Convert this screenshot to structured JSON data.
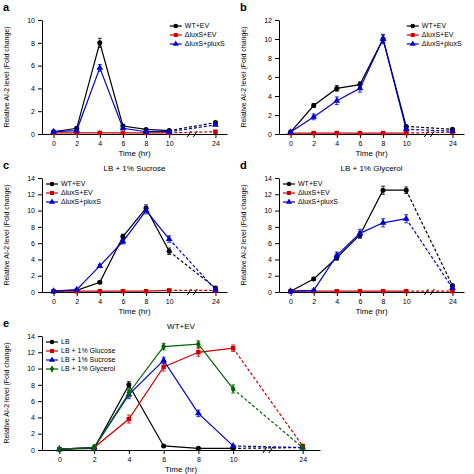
{
  "chart_data": [
    {
      "type": "line",
      "annotations": [
        "a"
      ],
      "xlabel": "Time (hr)",
      "ylabel": "Relative AI-2 level (Fold change)",
      "categories": [
        "0",
        "2",
        "4",
        "6",
        "8",
        "10",
        "24"
      ],
      "ylim": [
        0,
        10
      ],
      "yticks": [
        0,
        2,
        4,
        6,
        8,
        10
      ],
      "grid": false,
      "legend": "upper right",
      "series": [
        {
          "name": "WT+EV",
          "color": "#000000",
          "marker": "circle",
          "values": [
            0.2,
            0.5,
            8.0,
            0.7,
            0.4,
            0.3,
            1.0
          ],
          "errors": [
            0.1,
            0.1,
            0.4,
            0.1,
            0.05,
            0.05,
            0.1
          ]
        },
        {
          "name": "ΔluxS+EV",
          "color": "#cc0000",
          "marker": "square",
          "values": [
            0.1,
            0.1,
            0.1,
            0.1,
            0.1,
            0.1,
            0.2
          ],
          "errors": [
            0.05,
            0.05,
            0.05,
            0.05,
            0.05,
            0.05,
            0.05
          ]
        },
        {
          "name": "ΔluxS+pluxS",
          "color": "#0000cc",
          "marker": "triangle",
          "values": [
            0.2,
            0.3,
            5.8,
            0.5,
            0.2,
            0.2,
            0.8
          ],
          "errors": [
            0.05,
            0.05,
            0.3,
            0.05,
            0.05,
            0.05,
            0.05
          ]
        }
      ]
    },
    {
      "type": "line",
      "annotations": [
        "b"
      ],
      "xlabel": "Time (hr)",
      "ylabel": "Relative AI-2 level (Fold change)",
      "categories": [
        "0",
        "2",
        "4",
        "6",
        "8",
        "10",
        "24"
      ],
      "ylim": [
        0,
        12
      ],
      "yticks": [
        0,
        2,
        4,
        6,
        8,
        10,
        12
      ],
      "grid": false,
      "legend": "upper right",
      "series": [
        {
          "name": "WT+EV",
          "color": "#000000",
          "marker": "circle",
          "values": [
            0.2,
            3.0,
            4.8,
            5.2,
            10.0,
            0.8,
            0.5
          ],
          "errors": [
            0.05,
            0.2,
            0.3,
            0.3,
            0.4,
            0.1,
            0.05
          ]
        },
        {
          "name": "ΔluxS+EV",
          "color": "#cc0000",
          "marker": "square",
          "values": [
            0.1,
            0.1,
            0.1,
            0.1,
            0.1,
            0.1,
            0.2
          ],
          "errors": [
            0.05,
            0.05,
            0.05,
            0.05,
            0.05,
            0.05,
            0.05
          ]
        },
        {
          "name": "ΔluxS+pluxS",
          "color": "#0000cc",
          "marker": "triangle",
          "values": [
            0.2,
            1.8,
            3.5,
            4.8,
            10.0,
            0.5,
            0.3
          ],
          "errors": [
            0.05,
            0.3,
            0.4,
            0.4,
            0.5,
            0.05,
            0.05
          ]
        }
      ]
    },
    {
      "type": "line",
      "annotations": [
        "c"
      ],
      "title": "LB + 1% Sucrose",
      "xlabel": "Time (hr)",
      "ylabel": "Relative AI-2 level (Fold change)",
      "categories": [
        "0",
        "2",
        "4",
        "6",
        "8",
        "10",
        "24"
      ],
      "ylim": [
        0,
        14
      ],
      "yticks": [
        0,
        2,
        4,
        6,
        8,
        10,
        12,
        14
      ],
      "grid": false,
      "legend": "upper left",
      "series": [
        {
          "name": "WT+EV",
          "color": "#000000",
          "marker": "circle",
          "values": [
            0.1,
            0.2,
            1.2,
            6.8,
            10.3,
            5.0,
            0.5
          ],
          "errors": [
            0.05,
            0.05,
            0.15,
            0.3,
            0.4,
            0.4,
            0.1
          ]
        },
        {
          "name": "ΔluxS+EV",
          "color": "#cc0000",
          "marker": "square",
          "values": [
            0.1,
            0.1,
            0.1,
            0.1,
            0.1,
            0.2,
            0.2
          ],
          "errors": [
            0.05,
            0.05,
            0.05,
            0.05,
            0.05,
            0.05,
            0.05
          ]
        },
        {
          "name": "ΔluxS+pluxS",
          "color": "#0000cc",
          "marker": "triangle",
          "values": [
            0.1,
            0.3,
            3.2,
            6.2,
            10.0,
            6.5,
            0.3
          ],
          "errors": [
            0.05,
            0.05,
            0.2,
            0.3,
            0.4,
            0.4,
            0.05
          ]
        }
      ]
    },
    {
      "type": "line",
      "annotations": [
        "d"
      ],
      "title": "LB + 1% Glycerol",
      "xlabel": "Time (hr)",
      "ylabel": "Relative AI-2 level (Fold change)",
      "categories": [
        "0",
        "2",
        "4",
        "6",
        "8",
        "10",
        "24"
      ],
      "ylim": [
        0,
        14
      ],
      "yticks": [
        0,
        2,
        4,
        6,
        8,
        10,
        12,
        14
      ],
      "grid": false,
      "legend": "upper left",
      "series": [
        {
          "name": "WT+EV",
          "color": "#000000",
          "marker": "circle",
          "values": [
            0.1,
            1.6,
            4.2,
            7.0,
            12.5,
            12.5,
            0.8
          ],
          "errors": [
            0.05,
            0.2,
            0.3,
            0.4,
            0.5,
            0.4,
            0.1
          ]
        },
        {
          "name": "ΔluxS+EV",
          "color": "#cc0000",
          "marker": "square",
          "values": [
            0.1,
            0.1,
            0.1,
            0.1,
            0.1,
            0.1,
            0.1
          ],
          "errors": [
            0.05,
            0.05,
            0.05,
            0.05,
            0.05,
            0.05,
            0.05
          ]
        },
        {
          "name": "ΔluxS+pluxS",
          "color": "#0000cc",
          "marker": "triangle",
          "values": [
            0.1,
            0.2,
            4.5,
            7.2,
            8.5,
            9.0,
            0.5
          ],
          "errors": [
            0.05,
            0.05,
            0.4,
            0.5,
            0.5,
            0.5,
            0.05
          ]
        }
      ]
    },
    {
      "type": "line",
      "annotations": [
        "e"
      ],
      "title": "WT+EV",
      "xlabel": "Time (hr)",
      "ylabel": "Relative AI-2 level (Fold change)",
      "categories": [
        "0",
        "2",
        "4",
        "6",
        "8",
        "10",
        "24"
      ],
      "ylim": [
        0,
        14
      ],
      "yticks": [
        0,
        2,
        4,
        6,
        8,
        10,
        12,
        14
      ],
      "grid": false,
      "legend": "upper left",
      "series": [
        {
          "name": "LB",
          "color": "#000000",
          "marker": "circle",
          "values": [
            0.1,
            0.2,
            8.0,
            0.5,
            0.2,
            0.2,
            0.3
          ],
          "errors": [
            0.1,
            0.1,
            0.4,
            0.1,
            0.1,
            0.1,
            0.05
          ]
        },
        {
          "name": "LB + 1% Glucose",
          "color": "#cc0000",
          "marker": "square",
          "values": [
            0.1,
            0.3,
            3.8,
            10.2,
            12.0,
            12.5,
            0.5
          ],
          "errors": [
            0.05,
            0.1,
            0.5,
            0.5,
            0.5,
            0.4,
            0.05
          ]
        },
        {
          "name": "LB + 1% Sucrose",
          "color": "#0000cc",
          "marker": "triangle",
          "values": [
            0.1,
            0.3,
            6.8,
            11.0,
            4.5,
            0.5,
            0.3
          ],
          "errors": [
            0.05,
            0.1,
            0.5,
            0.4,
            0.4,
            0.1,
            0.05
          ]
        },
        {
          "name": "LB + 1% Glycerol",
          "color": "#006600",
          "marker": "diamond",
          "values": [
            0.1,
            0.3,
            7.0,
            12.7,
            13.0,
            7.5,
            0.3
          ],
          "errors": [
            0.05,
            0.1,
            0.5,
            0.4,
            0.4,
            0.5,
            0.05
          ]
        }
      ]
    }
  ]
}
